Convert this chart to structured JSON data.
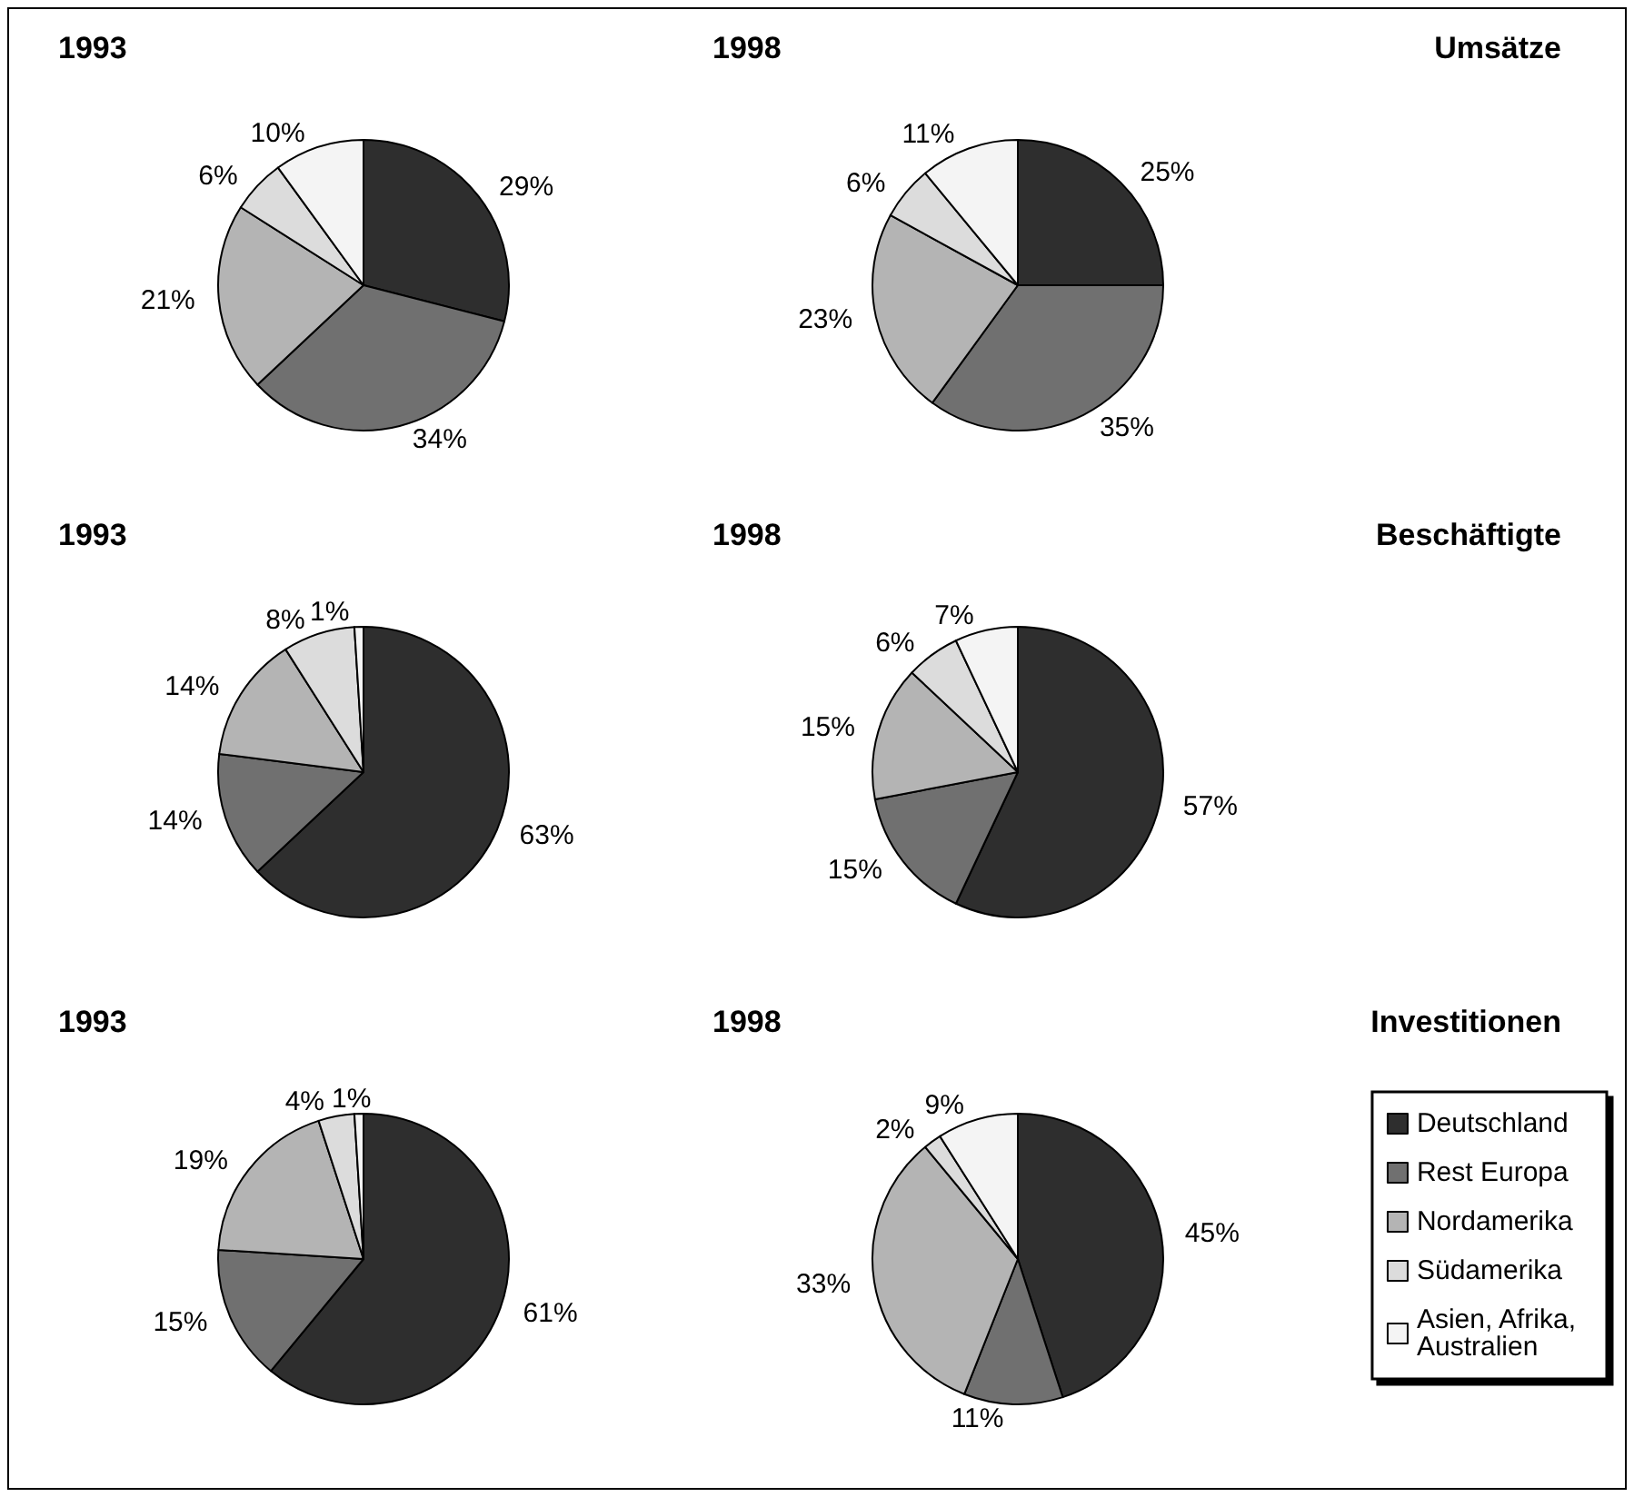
{
  "chart_data": [
    {
      "type": "pie",
      "title": "1993",
      "categories": [
        null,
        null,
        null,
        null,
        null
      ],
      "values": [
        29,
        34,
        21,
        6,
        10
      ],
      "value_labels": [
        "29%",
        "34%",
        "21%",
        "6%",
        "10%"
      ],
      "colors": [
        "#2e2e2e",
        "#707070",
        "#b4b4b4",
        "#dcdcdc",
        "#f4f4f4"
      ],
      "legend": false
    },
    {
      "type": "pie",
      "title": "1998",
      "subtitle": "Umsätze",
      "categories": [
        null,
        null,
        null,
        null,
        null
      ],
      "values": [
        25,
        35,
        23,
        6,
        11
      ],
      "value_labels": [
        "25%",
        "35%",
        "23%",
        "6%",
        "11%"
      ],
      "colors": [
        "#2e2e2e",
        "#707070",
        "#b4b4b4",
        "#dcdcdc",
        "#f4f4f4"
      ],
      "legend": false
    },
    {
      "type": "pie",
      "title": "1993",
      "categories": [
        null,
        null,
        null,
        null,
        null
      ],
      "values": [
        63,
        14,
        14,
        8,
        1
      ],
      "value_labels": [
        "63%",
        "14%",
        "14%",
        "8%",
        "1%"
      ],
      "colors": [
        "#2e2e2e",
        "#707070",
        "#b4b4b4",
        "#dcdcdc",
        "#f4f4f4"
      ],
      "legend": false
    },
    {
      "type": "pie",
      "title": "1998",
      "subtitle": "Beschäftigte",
      "categories": [
        null,
        null,
        null,
        null,
        null
      ],
      "values": [
        57,
        15,
        15,
        6,
        7
      ],
      "value_labels": [
        "57%",
        "15%",
        "15%",
        "6%",
        "7%"
      ],
      "colors": [
        "#2e2e2e",
        "#707070",
        "#b4b4b4",
        "#dcdcdc",
        "#f4f4f4"
      ],
      "legend": false
    },
    {
      "type": "pie",
      "title": "1993",
      "categories": [
        null,
        null,
        null,
        null,
        null
      ],
      "values": [
        61,
        15,
        19,
        4,
        1
      ],
      "value_labels": [
        "61%",
        "15%",
        "19%",
        "4%",
        "1%"
      ],
      "colors": [
        "#2e2e2e",
        "#707070",
        "#b4b4b4",
        "#dcdcdc",
        "#f4f4f4"
      ],
      "legend": false
    },
    {
      "type": "pie",
      "title": "1998",
      "subtitle": "Investitionen",
      "categories": [
        "Deutschland",
        "Rest Europa",
        "Nordamerika",
        "Südamerika",
        "Asien, Afrika, Australien"
      ],
      "values": [
        45,
        11,
        33,
        2,
        9
      ],
      "value_labels": [
        "45%",
        "11%",
        "33%",
        "2%",
        "9%"
      ],
      "colors": [
        "#2e2e2e",
        "#707070",
        "#b4b4b4",
        "#dcdcdc",
        "#f4f4f4"
      ],
      "legend": "right"
    }
  ]
}
